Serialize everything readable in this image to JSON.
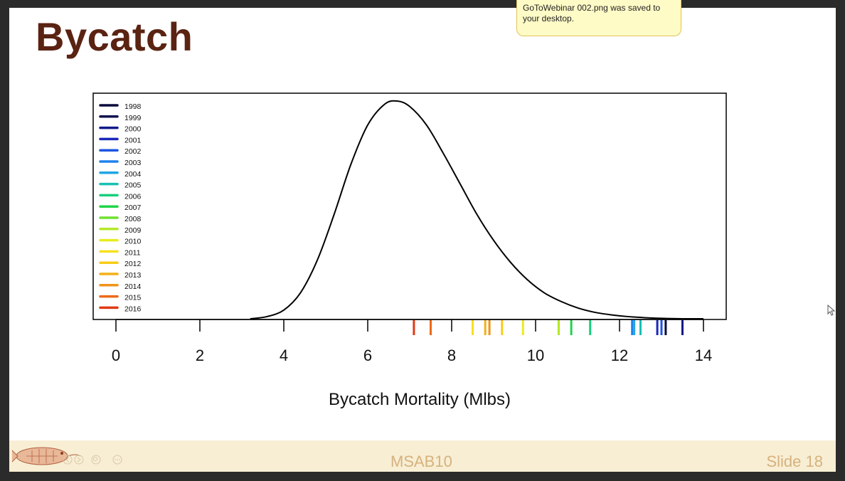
{
  "slide": {
    "title": "Bycatch",
    "footer_center": "MSAB10",
    "footer_right": "Slide 18"
  },
  "notification": {
    "text": "GoToWebinar 002.png was saved to your desktop."
  },
  "icons": {
    "logo": "fish-logo-icon",
    "cursor": "mouse-cursor-icon",
    "controls": [
      "previous-icon",
      "next-icon",
      "zoom-icon",
      "more-icon"
    ]
  },
  "chart_data": {
    "type": "line",
    "title": "",
    "xlabel": "Bycatch Mortality (Mlbs)",
    "ylabel": "",
    "xlim": [
      -0.6,
      14.5
    ],
    "xticks": [
      0,
      2,
      4,
      6,
      8,
      10,
      12,
      14
    ],
    "grid": false,
    "legend_position": "top-left",
    "density_curve": {
      "x": [
        3.2,
        3.6,
        4.0,
        4.4,
        4.8,
        5.2,
        5.6,
        6.0,
        6.4,
        6.7,
        7.0,
        7.4,
        7.8,
        8.2,
        8.6,
        9.0,
        9.4,
        9.8,
        10.2,
        10.6,
        11.0,
        11.4,
        11.8,
        12.2,
        12.6,
        13.0,
        13.5,
        14.0
      ],
      "y": [
        0.0,
        0.01,
        0.04,
        0.12,
        0.27,
        0.48,
        0.71,
        0.89,
        0.985,
        1.0,
        0.975,
        0.89,
        0.76,
        0.62,
        0.48,
        0.36,
        0.26,
        0.18,
        0.12,
        0.08,
        0.05,
        0.03,
        0.018,
        0.01,
        0.005,
        0.002,
        0.0,
        0.0
      ]
    },
    "series": [
      {
        "name": "1998",
        "value": 13.1,
        "color": "#0a0a3c"
      },
      {
        "name": "1999",
        "value": 13.0,
        "color": "#121250"
      },
      {
        "name": "2000",
        "value": 13.5,
        "color": "#101a8a"
      },
      {
        "name": "2001",
        "value": 12.9,
        "color": "#1a28b8"
      },
      {
        "name": "2002",
        "value": 13.0,
        "color": "#1e56e0"
      },
      {
        "name": "2003",
        "value": 12.3,
        "color": "#1e82ec"
      },
      {
        "name": "2004",
        "value": 12.35,
        "color": "#1ea6e4"
      },
      {
        "name": "2005",
        "value": 12.5,
        "color": "#18c0b4"
      },
      {
        "name": "2006",
        "value": 11.3,
        "color": "#18d07c"
      },
      {
        "name": "2007",
        "value": 10.85,
        "color": "#20d44a"
      },
      {
        "name": "2008",
        "value": 10.55,
        "color": "#70e030"
      },
      {
        "name": "2009",
        "value": 10.55,
        "color": "#b4e828"
      },
      {
        "name": "2010",
        "value": 9.7,
        "color": "#e8ec20"
      },
      {
        "name": "2011",
        "value": 8.5,
        "color": "#f8e020"
      },
      {
        "name": "2012",
        "value": 9.2,
        "color": "#f8cc18"
      },
      {
        "name": "2013",
        "value": 8.8,
        "color": "#f4b018"
      },
      {
        "name": "2014",
        "value": 8.9,
        "color": "#f09418"
      },
      {
        "name": "2015",
        "value": 7.5,
        "color": "#ec6a18"
      },
      {
        "name": "2016",
        "value": 7.1,
        "color": "#e03a14"
      }
    ]
  }
}
